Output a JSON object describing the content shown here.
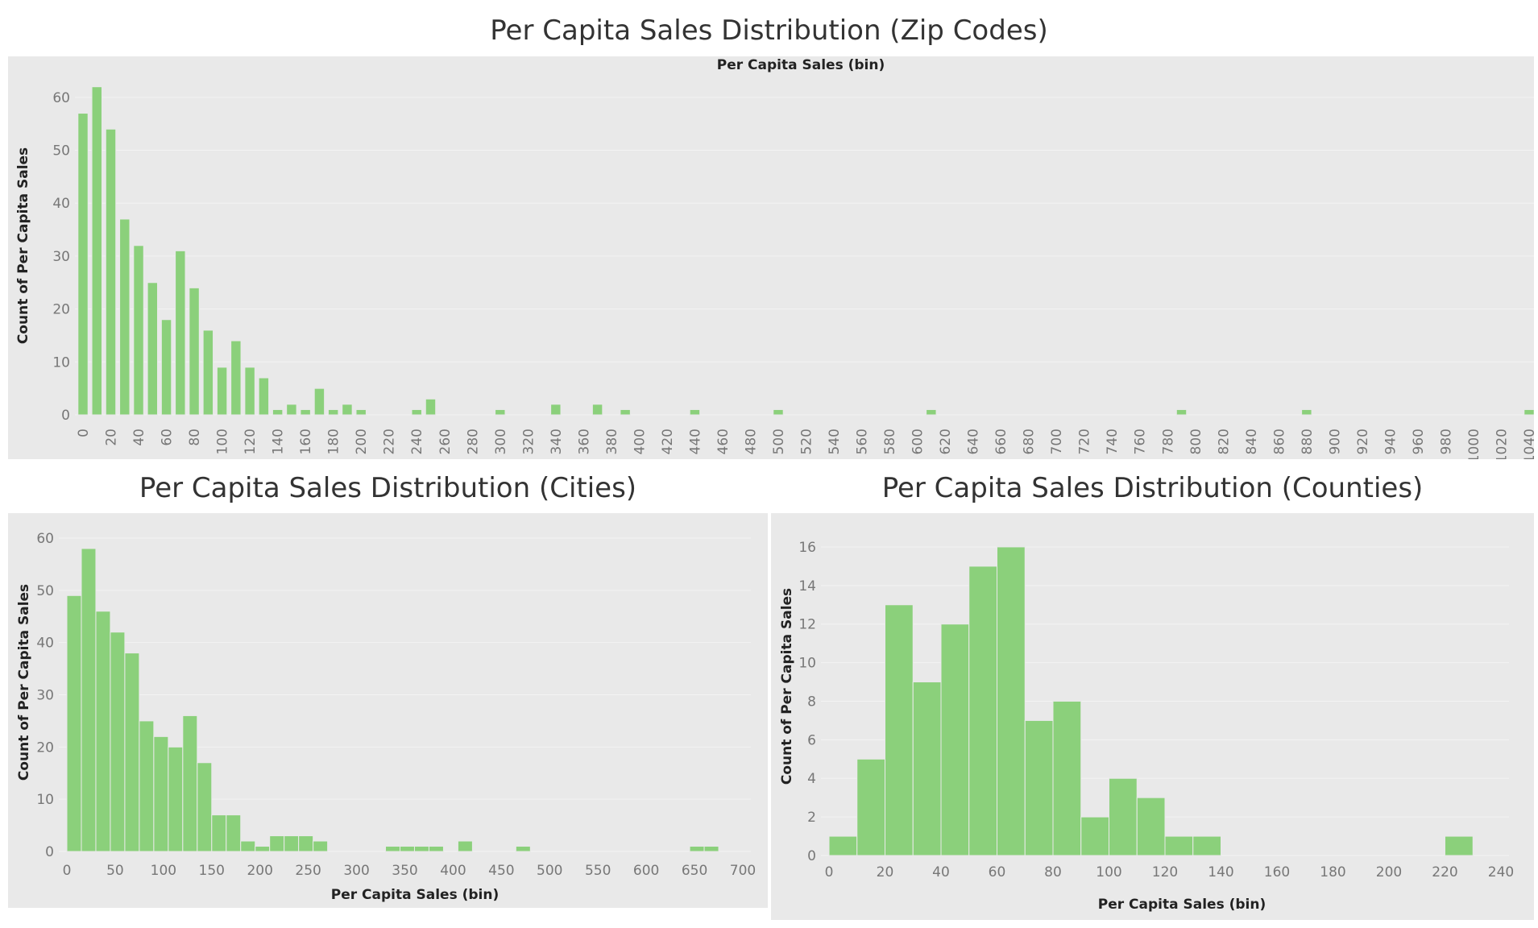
{
  "colors": {
    "bar": "#8bd07b",
    "panel_bg": "#e9e9e9"
  },
  "chart_data": [
    {
      "type": "bar",
      "title": "Per Capita Sales Distribution (Zip Codes)",
      "xlabel": "Per Capita Sales (bin)",
      "xlabel_position": "top",
      "ylabel": "Count of Per Capita Sales",
      "bin_width": 10,
      "bins": [
        0,
        10,
        20,
        30,
        40,
        50,
        60,
        70,
        80,
        90,
        100,
        110,
        120,
        130,
        140,
        150,
        160,
        170,
        180,
        190,
        200,
        240,
        250,
        300,
        340,
        370,
        390,
        440,
        500,
        610,
        790,
        880,
        1040
      ],
      "values": [
        57,
        62,
        54,
        37,
        32,
        25,
        18,
        31,
        24,
        16,
        9,
        14,
        9,
        7,
        1,
        2,
        1,
        5,
        1,
        2,
        1,
        1,
        3,
        1,
        2,
        2,
        1,
        1,
        1,
        1,
        1,
        1,
        1
      ],
      "xlim": [
        0,
        1040
      ],
      "ylim": [
        0,
        65
      ],
      "xticks": [
        "0",
        "20",
        "40",
        "60",
        "80",
        "100",
        "120",
        "140",
        "160",
        "180",
        "200",
        "220",
        "240",
        "260",
        "280",
        "300",
        "320",
        "340",
        "360",
        "380",
        "400",
        "420",
        "440",
        "460",
        "480",
        "500",
        "520",
        "540",
        "560",
        "580",
        "600",
        "620",
        "640",
        "660",
        "680",
        "700",
        "720",
        "740",
        "760",
        "780",
        "800",
        "820",
        "840",
        "860",
        "880",
        "900",
        "920",
        "940",
        "960",
        "980",
        "1000",
        "1020",
        "1040"
      ],
      "yticks": [
        "0",
        "10",
        "20",
        "30",
        "40",
        "50",
        "60"
      ],
      "grid": true
    },
    {
      "type": "bar",
      "title": "Per Capita Sales Distribution (Cities)",
      "xlabel": "Per Capita Sales (bin)",
      "ylabel": "Count of Per Capita Sales",
      "bin_width": 15,
      "bins": [
        0,
        15,
        30,
        45,
        60,
        75,
        90,
        105,
        120,
        135,
        150,
        165,
        180,
        195,
        210,
        225,
        240,
        255,
        330,
        345,
        360,
        375,
        405,
        465,
        645,
        660
      ],
      "values": [
        49,
        58,
        46,
        42,
        38,
        25,
        22,
        20,
        26,
        17,
        7,
        7,
        2,
        1,
        3,
        3,
        3,
        2,
        1,
        1,
        1,
        1,
        2,
        1,
        1,
        1
      ],
      "xlim": [
        0,
        700
      ],
      "ylim": [
        0,
        62
      ],
      "xticks": [
        "0",
        "50",
        "100",
        "150",
        "200",
        "250",
        "300",
        "350",
        "400",
        "450",
        "500",
        "550",
        "600",
        "650",
        "700"
      ],
      "yticks": [
        "0",
        "10",
        "20",
        "30",
        "40",
        "50",
        "60"
      ],
      "grid": true
    },
    {
      "type": "bar",
      "title": "Per Capita Sales Distribution (Counties)",
      "xlabel": "Per Capita Sales (bin)",
      "ylabel": "Count of Per Capita Sales",
      "bin_width": 10,
      "bins": [
        0,
        10,
        20,
        30,
        40,
        50,
        60,
        70,
        80,
        90,
        100,
        110,
        120,
        130,
        220
      ],
      "values": [
        1,
        5,
        13,
        9,
        12,
        15,
        16,
        7,
        8,
        2,
        4,
        3,
        1,
        1,
        1
      ],
      "xlim": [
        0,
        240
      ],
      "ylim": [
        0,
        17
      ],
      "xticks": [
        "0",
        "20",
        "40",
        "60",
        "80",
        "100",
        "120",
        "140",
        "160",
        "180",
        "200",
        "220",
        "240"
      ],
      "yticks": [
        "0",
        "2",
        "4",
        "6",
        "8",
        "10",
        "12",
        "14",
        "16"
      ],
      "grid": true
    }
  ]
}
